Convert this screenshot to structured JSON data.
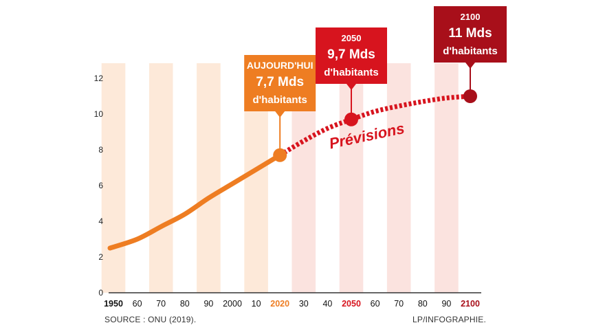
{
  "chart_data": {
    "type": "line",
    "x_ticks": [
      {
        "year": 1950,
        "label": "1950",
        "color": "#111111"
      },
      {
        "year": 1960,
        "label": "60",
        "color": "#111111"
      },
      {
        "year": 1970,
        "label": "70",
        "color": "#111111"
      },
      {
        "year": 1980,
        "label": "80",
        "color": "#111111"
      },
      {
        "year": 1990,
        "label": "90",
        "color": "#111111"
      },
      {
        "year": 2000,
        "label": "2000",
        "color": "#111111"
      },
      {
        "year": 2010,
        "label": "10",
        "color": "#111111"
      },
      {
        "year": 2020,
        "label": "2020",
        "color": "#ee7d22"
      },
      {
        "year": 2030,
        "label": "30",
        "color": "#111111"
      },
      {
        "year": 2040,
        "label": "40",
        "color": "#111111"
      },
      {
        "year": 2050,
        "label": "2050",
        "color": "#d7141e"
      },
      {
        "year": 2060,
        "label": "60",
        "color": "#111111"
      },
      {
        "year": 2070,
        "label": "70",
        "color": "#111111"
      },
      {
        "year": 2080,
        "label": "80",
        "color": "#111111"
      },
      {
        "year": 2090,
        "label": "90",
        "color": "#111111"
      },
      {
        "year": 2100,
        "label": "2100",
        "color": "#a80f1a"
      }
    ],
    "y_ticks": [
      0,
      2,
      4,
      6,
      8,
      10,
      12
    ],
    "xlim": [
      1950,
      2100
    ],
    "ylim": [
      0,
      13
    ],
    "series": [
      {
        "kind": "observed",
        "color": "#ee7d22",
        "x": [
          1950,
          1960,
          1970,
          1980,
          1990,
          2000,
          2010,
          2020
        ],
        "y": [
          2.5,
          3.0,
          3.7,
          4.4,
          5.3,
          6.1,
          6.9,
          7.7
        ]
      },
      {
        "name": "Prévisions",
        "kind": "forecast",
        "color": "#d7141e",
        "x": [
          2020,
          2030,
          2040,
          2050,
          2060,
          2070,
          2080,
          2090,
          2100
        ],
        "y": [
          7.7,
          8.5,
          9.2,
          9.7,
          10.15,
          10.45,
          10.7,
          10.9,
          11.0
        ]
      }
    ],
    "forecast_label": "Prévisions",
    "callouts": [
      {
        "year": 2020,
        "value": 7.7,
        "lines": [
          "AUJOURD'HUI",
          "7,7 Mds",
          "d'habitants"
        ],
        "color": "#ee7d22"
      },
      {
        "year": 2050,
        "value": 9.7,
        "lines": [
          "2050",
          "9,7 Mds",
          "d'habitants"
        ],
        "color": "#d7141e"
      },
      {
        "year": 2100,
        "value": 11.0,
        "lines": [
          "2100",
          "11 Mds",
          "d'habitants"
        ],
        "color": "#a80f1a"
      }
    ],
    "band_colors": [
      "#fde9d9",
      "#fbe3df"
    ]
  },
  "footer": {
    "source": "SOURCE : ONU (2019).",
    "credit": "LP/INFOGRAPHIE."
  }
}
